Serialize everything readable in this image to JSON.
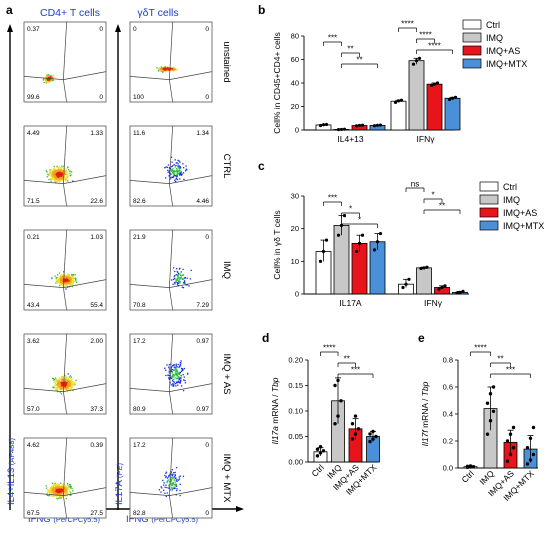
{
  "panel_letters": [
    "a",
    "b",
    "c",
    "d",
    "e"
  ],
  "flow": {
    "col_titles": [
      "CD4+ T cells",
      "γδT cells"
    ],
    "row_labels": [
      "unstained",
      "CTRL",
      "IMQ",
      "IMQ + AS",
      "IMQ + MTX"
    ],
    "y_label_left": "IL4+IL13",
    "y_label_left_fluor": "(AF488)",
    "y_label_right": "IL17A",
    "y_label_right_fluor": "(PE)",
    "x_label": "IFNG",
    "x_label_fluor": "(PerCPCy5.5)",
    "cd4_quadrants": [
      {
        "tl": "0.37",
        "tr": "0",
        "bl": "99.6",
        "br": "0"
      },
      {
        "tl": "4.49",
        "tr": "1.33",
        "bl": "71.5",
        "br": "22.6"
      },
      {
        "tl": "0.21",
        "tr": "1.03",
        "bl": "43.4",
        "br": "55.4"
      },
      {
        "tl": "3.62",
        "tr": "2.00",
        "bl": "57.0",
        "br": "37.3"
      },
      {
        "tl": "4.62",
        "tr": "0.39",
        "bl": "67.5",
        "br": "27.5"
      }
    ],
    "gd_quadrants": [
      {
        "tl": "0",
        "tr": "0",
        "bl": "100",
        "br": "0"
      },
      {
        "tl": "11.6",
        "tr": "1.34",
        "bl": "82.6",
        "br": "4.46"
      },
      {
        "tl": "21.9",
        "tr": "0",
        "bl": "70.8",
        "br": "7.29"
      },
      {
        "tl": "17.2",
        "tr": "0.97",
        "bl": "80.9",
        "br": "0.97"
      },
      {
        "tl": "17.2",
        "tr": "0",
        "bl": "82.8",
        "br": "0"
      }
    ]
  },
  "legend": [
    "Ctrl",
    "IMQ",
    "IMQ+AS",
    "IMQ+MTX"
  ],
  "colors": {
    "ctrl": "#ffffff",
    "imq": "#c8c8c8",
    "as": "#e8141c",
    "mtx": "#4a90d9"
  },
  "chart_data": [
    {
      "panel": "b",
      "type": "bar",
      "ylabel": "Cell% in CD45+CD4+ cells",
      "ylim": [
        0,
        80
      ],
      "yticks": [
        0,
        20,
        40,
        60,
        80
      ],
      "categories": [
        "IL4+13",
        "IFNγ"
      ],
      "series": [
        {
          "name": "Ctrl",
          "values": [
            4.3,
            24.5
          ],
          "points": [
            [
              3.8,
              4.5,
              4.7
            ],
            [
              23.5,
              24.8,
              25.3
            ]
          ]
        },
        {
          "name": "IMQ",
          "values": [
            0.5,
            59
          ],
          "points": [
            [
              0.3,
              0.5,
              0.7
            ],
            [
              56,
              59,
              61
            ]
          ]
        },
        {
          "name": "IMQ+AS",
          "values": [
            3.8,
            39
          ],
          "points": [
            [
              3.5,
              3.9,
              4.1
            ],
            [
              38,
              39,
              40
            ]
          ]
        },
        {
          "name": "IMQ+MTX",
          "values": [
            3.9,
            27
          ],
          "points": [
            [
              3.6,
              4,
              4.2
            ],
            [
              26,
              27,
              27.8
            ]
          ]
        }
      ],
      "significance": [
        {
          "group": 0,
          "from": 0,
          "to": 1,
          "label": "***"
        },
        {
          "group": 0,
          "from": 1,
          "to": 2,
          "label": "**"
        },
        {
          "group": 0,
          "from": 1,
          "to": 3,
          "label": "**"
        },
        {
          "group": 1,
          "from": 0,
          "to": 1,
          "label": "****"
        },
        {
          "group": 1,
          "from": 1,
          "to": 2,
          "label": "****"
        },
        {
          "group": 1,
          "from": 1,
          "to": 3,
          "label": "****"
        }
      ]
    },
    {
      "panel": "c",
      "type": "bar",
      "ylabel": "Cell% in γδ T cells",
      "ylim": [
        0,
        30
      ],
      "yticks": [
        0,
        10,
        20,
        30
      ],
      "categories": [
        "IL17A",
        "IFNγ"
      ],
      "series": [
        {
          "name": "Ctrl",
          "values": [
            13,
            3
          ],
          "points": [
            [
              10,
              13,
              16.5
            ],
            [
              2,
              3,
              4.5
            ]
          ]
        },
        {
          "name": "IMQ",
          "values": [
            21,
            8
          ],
          "points": [
            [
              18,
              21,
              24
            ],
            [
              7.8,
              8,
              8.2
            ]
          ]
        },
        {
          "name": "IMQ+AS",
          "values": [
            15.5,
            2
          ],
          "points": [
            [
              13,
              15.5,
              18
            ],
            [
              1.5,
              2,
              2.5
            ]
          ]
        },
        {
          "name": "IMQ+MTX",
          "values": [
            16,
            0.5
          ],
          "points": [
            [
              13.5,
              16,
              18.5
            ],
            [
              0.3,
              0.5,
              0.8
            ]
          ]
        }
      ],
      "significance": [
        {
          "group": 0,
          "from": 0,
          "to": 1,
          "label": "***"
        },
        {
          "group": 0,
          "from": 1,
          "to": 2,
          "label": "*"
        },
        {
          "group": 0,
          "from": 1,
          "to": 3,
          "label": "*"
        },
        {
          "group": 1,
          "from": 0,
          "to": 1,
          "label": "ns"
        },
        {
          "group": 1,
          "from": 1,
          "to": 2,
          "label": "*"
        },
        {
          "group": 1,
          "from": 1,
          "to": 3,
          "label": "**"
        }
      ]
    },
    {
      "panel": "d",
      "type": "bar",
      "ylabel_italic": "Il17a",
      "ylabel_mid": " mRNA / ",
      "ylabel_italic2": "Tbp",
      "ylim": [
        0,
        0.2
      ],
      "yticks": [
        "0.00",
        "0.05",
        "0.10",
        "0.15",
        "0.20"
      ],
      "categories": [
        "Ctrl",
        "IMQ",
        "IMQ+AS",
        "IMQ+MTX"
      ],
      "values": [
        0.02,
        0.12,
        0.065,
        0.05
      ],
      "errors": [
        0.008,
        0.045,
        0.02,
        0.01
      ],
      "points": [
        [
          0.012,
          0.018,
          0.022,
          0.025,
          0.03
        ],
        [
          0.075,
          0.09,
          0.12,
          0.15,
          0.16
        ],
        [
          0.045,
          0.055,
          0.065,
          0.075,
          0.09
        ],
        [
          0.04,
          0.045,
          0.05,
          0.055,
          0.06
        ]
      ],
      "significance": [
        {
          "from": 0,
          "to": 1,
          "label": "****"
        },
        {
          "from": 1,
          "to": 2,
          "label": "**"
        },
        {
          "from": 1,
          "to": 3,
          "label": "***"
        }
      ]
    },
    {
      "panel": "e",
      "type": "bar",
      "ylabel_italic": "Il17f",
      "ylabel_mid": " mRNA / ",
      "ylabel_italic2": "Tbp",
      "ylim": [
        0,
        0.8
      ],
      "yticks": [
        "0.0",
        "0.2",
        "0.4",
        "0.6",
        "0.8"
      ],
      "categories": [
        "Ctrl",
        "IMQ",
        "IMQ+AS",
        "IMQ+MTX"
      ],
      "values": [
        0.01,
        0.44,
        0.19,
        0.14
      ],
      "errors": [
        0.005,
        0.16,
        0.09,
        0.1
      ],
      "points": [
        [
          0.005,
          0.008,
          0.01,
          0.012,
          0.015
        ],
        [
          0.25,
          0.35,
          0.42,
          0.48,
          0.55,
          0.6
        ],
        [
          0.05,
          0.1,
          0.15,
          0.2,
          0.25,
          0.3
        ],
        [
          0.03,
          0.06,
          0.1,
          0.15,
          0.22,
          0.3
        ]
      ],
      "significance": [
        {
          "from": 0,
          "to": 1,
          "label": "****"
        },
        {
          "from": 1,
          "to": 2,
          "label": "**"
        },
        {
          "from": 1,
          "to": 3,
          "label": "***"
        }
      ]
    }
  ]
}
